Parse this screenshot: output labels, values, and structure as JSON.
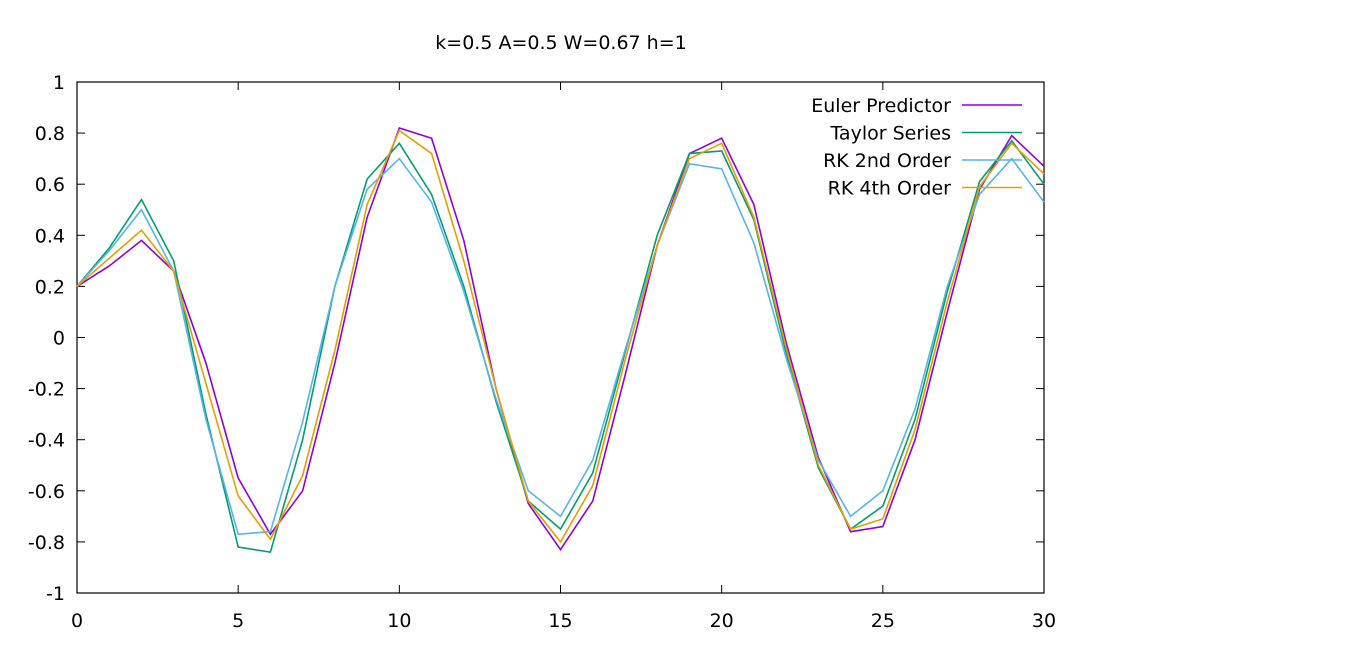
{
  "chart_data": {
    "type": "line",
    "title": "k=0.5 A=0.5 W=0.67 h=1",
    "xlabel": "",
    "ylabel": "",
    "xlim": [
      0,
      30
    ],
    "ylim": [
      -1,
      1
    ],
    "xticks": [
      0,
      5,
      10,
      15,
      20,
      25,
      30
    ],
    "xtick_labels": [
      "0",
      "5",
      "10",
      "15",
      "20",
      "25",
      "30"
    ],
    "yticks": [
      -1,
      -0.8,
      -0.6,
      -0.4,
      -0.2,
      0,
      0.2,
      0.4,
      0.6,
      0.8,
      1
    ],
    "ytick_labels": [
      "-1",
      "-0.8",
      "-0.6",
      "-0.4",
      "-0.2",
      "0",
      "0.2",
      "0.4",
      "0.6",
      "0.8",
      "1"
    ],
    "grid": false,
    "legend_position": "top-right",
    "x": [
      0,
      1,
      2,
      3,
      4,
      5,
      6,
      7,
      8,
      9,
      10,
      11,
      12,
      13,
      14,
      15,
      16,
      17,
      18,
      19,
      20,
      21,
      22,
      23,
      24,
      25,
      26,
      27,
      28,
      29,
      30
    ],
    "series": [
      {
        "name": "Euler Predictor",
        "color": "#9400d3",
        "values": [
          0.2,
          0.28,
          0.38,
          0.26,
          -0.1,
          -0.55,
          -0.77,
          -0.6,
          -0.1,
          0.47,
          0.82,
          0.78,
          0.38,
          -0.2,
          -0.65,
          -0.83,
          -0.64,
          -0.15,
          0.36,
          0.72,
          0.78,
          0.52,
          -0.02,
          -0.47,
          -0.76,
          -0.74,
          -0.4,
          0.1,
          0.58,
          0.79,
          0.67
        ]
      },
      {
        "name": "Taylor Series",
        "color": "#009e73",
        "values": [
          0.2,
          0.35,
          0.54,
          0.3,
          -0.3,
          -0.82,
          -0.84,
          -0.4,
          0.2,
          0.62,
          0.76,
          0.56,
          0.2,
          -0.25,
          -0.64,
          -0.75,
          -0.53,
          -0.06,
          0.4,
          0.72,
          0.73,
          0.46,
          -0.06,
          -0.51,
          -0.75,
          -0.66,
          -0.32,
          0.18,
          0.61,
          0.77,
          0.6
        ]
      },
      {
        "name": "RK 2nd Order",
        "color": "#56b4e9",
        "values": [
          0.2,
          0.34,
          0.5,
          0.26,
          -0.32,
          -0.77,
          -0.76,
          -0.33,
          0.2,
          0.58,
          0.7,
          0.53,
          0.18,
          -0.24,
          -0.6,
          -0.7,
          -0.48,
          -0.05,
          0.36,
          0.68,
          0.66,
          0.37,
          -0.08,
          -0.48,
          -0.7,
          -0.6,
          -0.28,
          0.2,
          0.56,
          0.7,
          0.53
        ]
      },
      {
        "name": "RK 4th Order",
        "color": "#e69f00",
        "values": [
          0.2,
          0.31,
          0.42,
          0.26,
          -0.18,
          -0.62,
          -0.79,
          -0.54,
          -0.05,
          0.52,
          0.81,
          0.72,
          0.3,
          -0.2,
          -0.64,
          -0.8,
          -0.58,
          -0.09,
          0.36,
          0.7,
          0.76,
          0.47,
          -0.04,
          -0.5,
          -0.75,
          -0.71,
          -0.36,
          0.14,
          0.59,
          0.76,
          0.64
        ]
      }
    ]
  }
}
